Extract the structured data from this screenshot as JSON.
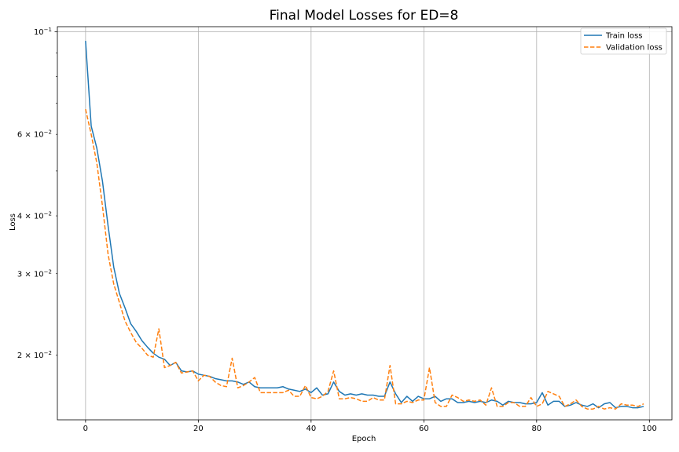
{
  "chart_data": {
    "type": "line",
    "title": "Final Model Losses for ED=8",
    "xlabel": "Epoch",
    "ylabel": "Loss",
    "xlim": [
      -5,
      104
    ],
    "ylim": [
      0.0145,
      0.1025
    ],
    "yscale": "log",
    "grid": "x-major",
    "legend_position": "top-right",
    "xticks": [
      0,
      20,
      40,
      60,
      80,
      100
    ],
    "xtick_labels": [
      "0",
      "20",
      "40",
      "60",
      "80",
      "100"
    ],
    "yticks_major": [
      {
        "value": 0.1,
        "base": "10",
        "exp": "−1",
        "mantissa": ""
      }
    ],
    "yticks_minor": [
      {
        "value": 0.06,
        "mantissa": "6",
        "base": "10",
        "exp": "−2"
      },
      {
        "value": 0.04,
        "mantissa": "4",
        "base": "10",
        "exp": "−2"
      },
      {
        "value": 0.03,
        "mantissa": "3",
        "base": "10",
        "exp": "−2"
      },
      {
        "value": 0.02,
        "mantissa": "2",
        "base": "10",
        "exp": "−2"
      }
    ],
    "yticks_minor_unlabeled": [
      0.09,
      0.08,
      0.07,
      0.05
    ],
    "times_symbol": "×",
    "series": [
      {
        "name": "Train loss",
        "color": "#1f77b4",
        "style": "solid",
        "values": [
          0.0955,
          0.0625,
          0.056,
          0.0475,
          0.038,
          0.031,
          0.0272,
          0.0253,
          0.0234,
          0.0225,
          0.0215,
          0.0208,
          0.0202,
          0.0198,
          0.0196,
          0.019,
          0.0193,
          0.0185,
          0.0184,
          0.0185,
          0.0182,
          0.0181,
          0.018,
          0.0178,
          0.0177,
          0.0176,
          0.0176,
          0.0175,
          0.0173,
          0.0175,
          0.0171,
          0.017,
          0.017,
          0.017,
          0.017,
          0.0171,
          0.0169,
          0.0168,
          0.0167,
          0.0169,
          0.0166,
          0.017,
          0.0164,
          0.0165,
          0.0175,
          0.0167,
          0.0164,
          0.0165,
          0.0164,
          0.0165,
          0.0164,
          0.0164,
          0.0163,
          0.0163,
          0.0175,
          0.0165,
          0.0158,
          0.0163,
          0.0159,
          0.0163,
          0.0161,
          0.0161,
          0.0163,
          0.0159,
          0.0161,
          0.0161,
          0.0158,
          0.0158,
          0.0159,
          0.0158,
          0.0159,
          0.0158,
          0.016,
          0.0159,
          0.0156,
          0.0159,
          0.0158,
          0.0158,
          0.0157,
          0.0157,
          0.0158,
          0.0166,
          0.0156,
          0.0159,
          0.0159,
          0.0155,
          0.0156,
          0.0158,
          0.0156,
          0.0155,
          0.0157,
          0.0154,
          0.0157,
          0.0158,
          0.0154,
          0.0155,
          0.0155,
          0.0154,
          0.0154,
          0.0155
        ]
      },
      {
        "name": "Validation loss",
        "color": "#ff7f0e",
        "style": "dashed",
        "values": [
          0.068,
          0.06,
          0.052,
          0.042,
          0.033,
          0.0285,
          0.026,
          0.0237,
          0.0224,
          0.0213,
          0.0207,
          0.02,
          0.0198,
          0.0228,
          0.0188,
          0.019,
          0.0193,
          0.0183,
          0.0184,
          0.0185,
          0.0176,
          0.0181,
          0.018,
          0.0175,
          0.0172,
          0.0171,
          0.0197,
          0.017,
          0.0172,
          0.0175,
          0.0179,
          0.0166,
          0.0166,
          0.0166,
          0.0166,
          0.0166,
          0.0168,
          0.0163,
          0.0163,
          0.0172,
          0.0162,
          0.0161,
          0.0163,
          0.0167,
          0.0185,
          0.0161,
          0.0161,
          0.0162,
          0.0161,
          0.0159,
          0.0159,
          0.0162,
          0.016,
          0.016,
          0.019,
          0.0157,
          0.0157,
          0.0159,
          0.0158,
          0.016,
          0.016,
          0.0188,
          0.0158,
          0.0155,
          0.0155,
          0.0164,
          0.0162,
          0.0159,
          0.016,
          0.0159,
          0.016,
          0.0156,
          0.017,
          0.0155,
          0.0155,
          0.0158,
          0.0158,
          0.0155,
          0.0155,
          0.0162,
          0.0155,
          0.0157,
          0.0167,
          0.0165,
          0.0163,
          0.0155,
          0.0157,
          0.016,
          0.0155,
          0.0153,
          0.0153,
          0.0155,
          0.0153,
          0.0154,
          0.0153,
          0.0157,
          0.0156,
          0.0156,
          0.0155,
          0.0157
        ]
      }
    ]
  }
}
